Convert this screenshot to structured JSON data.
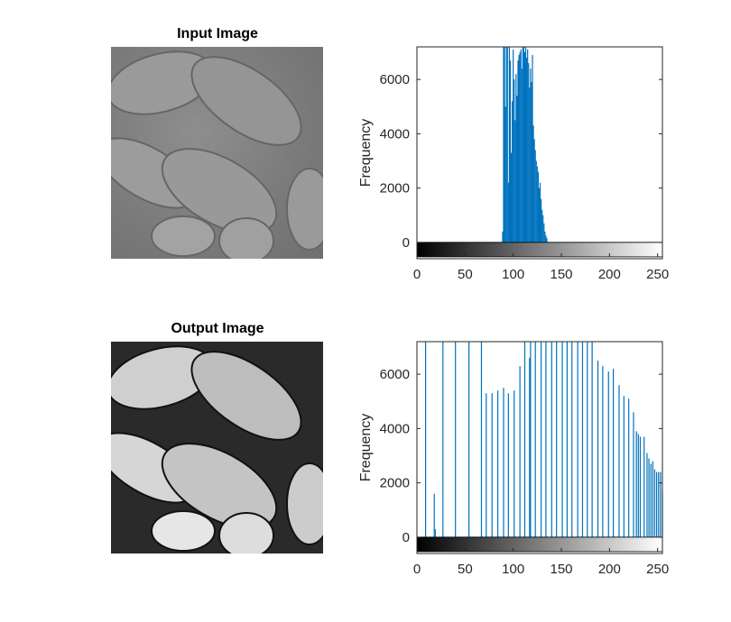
{
  "images": {
    "input": {
      "title": "Input Image"
    },
    "output": {
      "title": "Output Image"
    }
  },
  "chart_data": [
    {
      "type": "bar",
      "subtype": "histogram",
      "ylabel": "Frequency",
      "xlim": [
        0,
        255
      ],
      "ylim": [
        -600,
        7200
      ],
      "xticks": [
        0,
        50,
        100,
        150,
        200,
        250
      ],
      "yticks": [
        0,
        2000,
        4000,
        6000
      ],
      "bar_color": "#0072BD",
      "colorbar": "grayscale 0-255",
      "series": [
        {
          "x": [
            89,
            90,
            91,
            92,
            93,
            94,
            95,
            96,
            97,
            98,
            99,
            100,
            101,
            102,
            103,
            104,
            105,
            106,
            107,
            108,
            109,
            110,
            111,
            112,
            113,
            114,
            115,
            116,
            117,
            118,
            119,
            120,
            121,
            122,
            123,
            124,
            125,
            126,
            127,
            128,
            129,
            130,
            131,
            132,
            133,
            134,
            135
          ],
          "values": [
            400,
            7200,
            7200,
            5000,
            7200,
            7200,
            2200,
            7200,
            6700,
            3300,
            5200,
            7100,
            6000,
            4500,
            6200,
            5400,
            6700,
            6900,
            7000,
            7100,
            6400,
            7200,
            7200,
            7000,
            7200,
            6800,
            7100,
            6600,
            5700,
            6400,
            5900,
            6900,
            4300,
            3800,
            3400,
            3000,
            2800,
            2600,
            2000,
            2200,
            1600,
            1200,
            1000,
            700,
            400,
            250,
            150
          ]
        }
      ]
    },
    {
      "type": "bar",
      "subtype": "histogram",
      "ylabel": "Frequency",
      "xlim": [
        0,
        255
      ],
      "ylim": [
        -600,
        7200
      ],
      "xticks": [
        0,
        50,
        100,
        150,
        200,
        250
      ],
      "yticks": [
        0,
        2000,
        4000,
        6000
      ],
      "bar_color": "#0072BD",
      "colorbar": "grayscale 0-255",
      "series": [
        {
          "x": [
            9,
            18,
            19,
            27,
            40,
            54,
            67,
            72,
            78,
            84,
            90,
            95,
            101,
            107,
            112,
            117,
            118,
            123,
            129,
            134,
            140,
            145,
            151,
            156,
            161,
            167,
            172,
            177,
            182,
            188,
            193,
            199,
            204,
            210,
            215,
            220,
            225,
            228,
            230,
            232,
            236,
            239,
            241,
            243,
            245,
            247,
            249,
            251,
            253,
            255
          ],
          "values": [
            7200,
            1600,
            300,
            7200,
            7200,
            7200,
            7200,
            5300,
            5300,
            5400,
            5500,
            5300,
            5400,
            6300,
            7200,
            6600,
            7200,
            7200,
            7200,
            7200,
            7200,
            7200,
            7200,
            7200,
            7200,
            7200,
            7200,
            7200,
            7200,
            6500,
            6300,
            6100,
            6200,
            5600,
            5200,
            5100,
            4600,
            3900,
            3800,
            3700,
            3700,
            3100,
            2900,
            2700,
            2800,
            2500,
            2400,
            2400,
            2400,
            1700
          ]
        }
      ]
    }
  ]
}
